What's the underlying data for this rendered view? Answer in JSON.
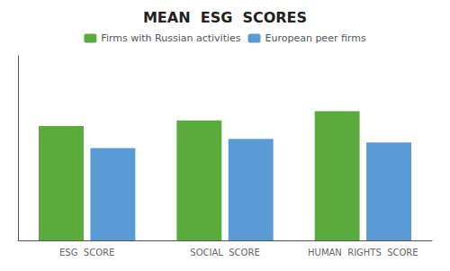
{
  "chart_data": {
    "type": "bar",
    "title": "MEAN  ESG  SCORES",
    "categories": [
      "ESG  SCORE",
      "SOCIAL  SCORE",
      "HUMAN  RIGHTS  SCORE"
    ],
    "series": [
      {
        "name": "Firms with Russian activities",
        "color": "#5aaa3c",
        "values": [
          62,
          65,
          70
        ]
      },
      {
        "name": "European peer firms",
        "color": "#5b9bd5",
        "values": [
          50,
          55,
          53
        ]
      }
    ],
    "ylim": [
      0,
      100
    ],
    "grid": false,
    "legend": "top",
    "tick_labels": "x"
  }
}
